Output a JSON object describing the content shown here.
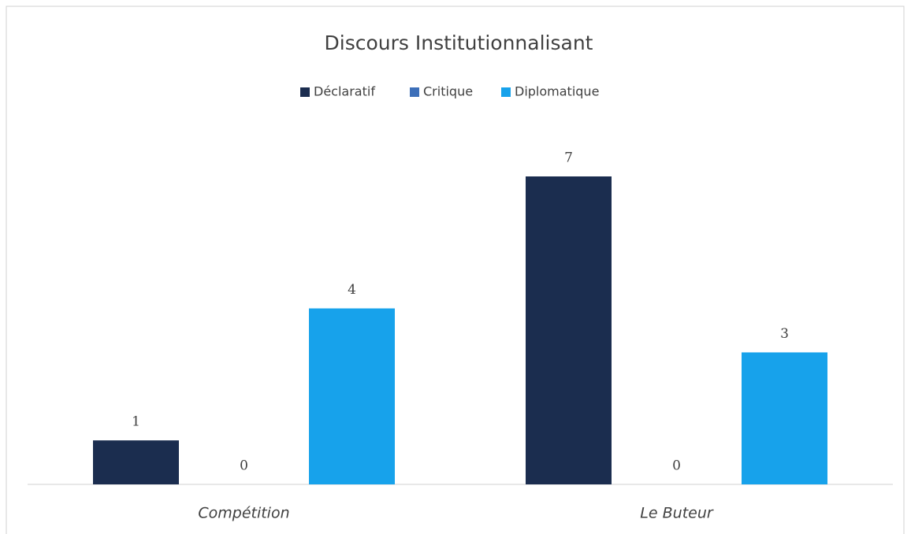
{
  "chart_data": {
    "type": "bar",
    "title": "Discours Institutionnalisant",
    "categories": [
      "Compétition",
      "Le Buteur"
    ],
    "series": [
      {
        "name": "Déclaratif",
        "color": "#1b2d4f",
        "values": [
          1,
          7
        ]
      },
      {
        "name": "Critique",
        "color": "#3d6fb9",
        "values": [
          0,
          0
        ]
      },
      {
        "name": "Diplomatique",
        "color": "#17a2eb",
        "values": [
          4,
          3
        ]
      }
    ]
  }
}
